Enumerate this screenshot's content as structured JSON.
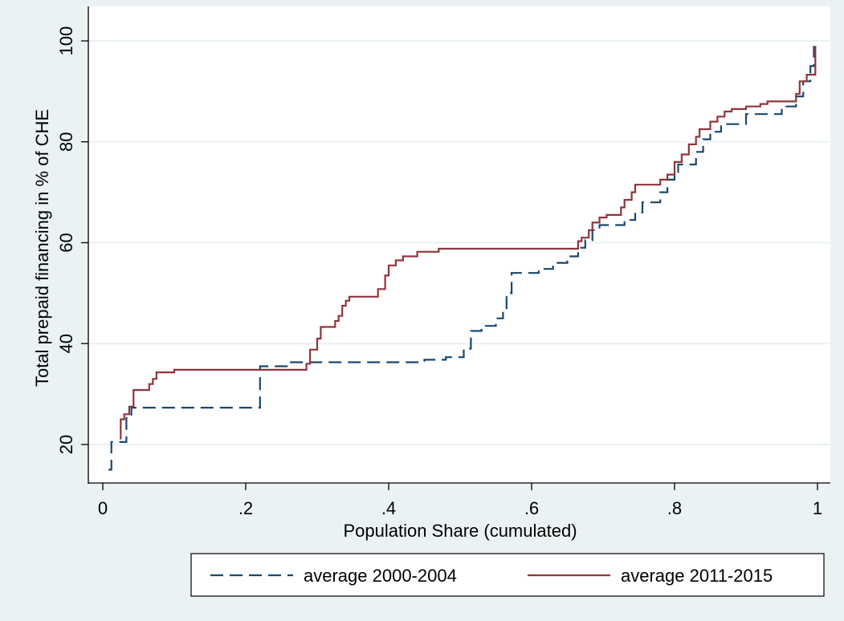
{
  "colors": {
    "background": "#eaf2f3",
    "plot_background": "#ffffff",
    "grid": "#eaf2f3",
    "series_2000_2004": "#1a476f",
    "series_2011_2015": "#90353b"
  },
  "chart_data": {
    "type": "line",
    "title": "",
    "xlabel": "Population Share (cumulated)",
    "ylabel": "Total prepaid financing in % of CHE",
    "xlim": [
      0,
      1
    ],
    "ylim": [
      12,
      101
    ],
    "xticks": [
      0,
      0.2,
      0.4,
      0.6,
      0.8,
      1
    ],
    "xtick_labels": [
      "0",
      ".2",
      ".4",
      ".6",
      ".8",
      "1"
    ],
    "yticks": [
      20,
      40,
      60,
      80,
      100
    ],
    "ytick_labels": [
      "20",
      "40",
      "60",
      "80",
      "100"
    ],
    "grid": true,
    "legend": "bottom",
    "series": [
      {
        "name": "average 2000-2004",
        "style": "dashed",
        "color": "#1a476f",
        "points": [
          [
            0.008,
            15.0
          ],
          [
            0.012,
            15.0
          ],
          [
            0.012,
            20.5
          ],
          [
            0.033,
            20.5
          ],
          [
            0.033,
            25.5
          ],
          [
            0.04,
            25.5
          ],
          [
            0.04,
            27.3
          ],
          [
            0.22,
            27.3
          ],
          [
            0.22,
            35.5
          ],
          [
            0.26,
            35.5
          ],
          [
            0.26,
            36.3
          ],
          [
            0.45,
            36.3
          ],
          [
            0.45,
            36.8
          ],
          [
            0.48,
            36.8
          ],
          [
            0.48,
            37.3
          ],
          [
            0.505,
            37.3
          ],
          [
            0.505,
            39.0
          ],
          [
            0.515,
            39.0
          ],
          [
            0.515,
            42.5
          ],
          [
            0.53,
            42.5
          ],
          [
            0.53,
            43.5
          ],
          [
            0.55,
            43.5
          ],
          [
            0.55,
            45.0
          ],
          [
            0.56,
            45.0
          ],
          [
            0.56,
            47.0
          ],
          [
            0.565,
            47.0
          ],
          [
            0.565,
            50.0
          ],
          [
            0.572,
            50.0
          ],
          [
            0.572,
            54.0
          ],
          [
            0.61,
            54.0
          ],
          [
            0.61,
            54.8
          ],
          [
            0.63,
            54.8
          ],
          [
            0.63,
            56.0
          ],
          [
            0.65,
            56.0
          ],
          [
            0.65,
            57.3
          ],
          [
            0.665,
            57.3
          ],
          [
            0.665,
            59.0
          ],
          [
            0.675,
            59.0
          ],
          [
            0.675,
            60.5
          ],
          [
            0.685,
            60.5
          ],
          [
            0.685,
            62.5
          ],
          [
            0.695,
            62.5
          ],
          [
            0.695,
            63.5
          ],
          [
            0.73,
            63.5
          ],
          [
            0.73,
            64.5
          ],
          [
            0.745,
            64.5
          ],
          [
            0.745,
            66.0
          ],
          [
            0.755,
            66.0
          ],
          [
            0.755,
            68.0
          ],
          [
            0.78,
            68.0
          ],
          [
            0.78,
            70.0
          ],
          [
            0.79,
            70.0
          ],
          [
            0.79,
            72.5
          ],
          [
            0.8,
            72.5
          ],
          [
            0.8,
            74.0
          ],
          [
            0.805,
            74.0
          ],
          [
            0.805,
            75.5
          ],
          [
            0.83,
            75.5
          ],
          [
            0.83,
            78.0
          ],
          [
            0.84,
            78.0
          ],
          [
            0.84,
            80.5
          ],
          [
            0.85,
            80.5
          ],
          [
            0.85,
            82.0
          ],
          [
            0.865,
            82.0
          ],
          [
            0.865,
            83.5
          ],
          [
            0.9,
            83.5
          ],
          [
            0.9,
            85.5
          ],
          [
            0.95,
            85.5
          ],
          [
            0.95,
            87.0
          ],
          [
            0.97,
            87.0
          ],
          [
            0.97,
            89.0
          ],
          [
            0.98,
            89.0
          ],
          [
            0.98,
            92.0
          ],
          [
            0.99,
            92.0
          ],
          [
            0.99,
            95.0
          ],
          [
            0.995,
            95.0
          ],
          [
            0.995,
            99.0
          ]
        ]
      },
      {
        "name": "average 2011-2015",
        "style": "solid",
        "color": "#90353b",
        "points": [
          [
            0.025,
            21.0
          ],
          [
            0.025,
            25.0
          ],
          [
            0.03,
            25.0
          ],
          [
            0.03,
            26.0
          ],
          [
            0.037,
            26.0
          ],
          [
            0.037,
            27.5
          ],
          [
            0.043,
            27.5
          ],
          [
            0.043,
            30.8
          ],
          [
            0.065,
            30.8
          ],
          [
            0.065,
            32.0
          ],
          [
            0.07,
            32.0
          ],
          [
            0.07,
            33.0
          ],
          [
            0.075,
            33.0
          ],
          [
            0.075,
            34.3
          ],
          [
            0.1,
            34.3
          ],
          [
            0.1,
            34.8
          ],
          [
            0.285,
            34.8
          ],
          [
            0.285,
            36.0
          ],
          [
            0.29,
            36.0
          ],
          [
            0.29,
            38.8
          ],
          [
            0.3,
            38.8
          ],
          [
            0.3,
            41.0
          ],
          [
            0.305,
            41.0
          ],
          [
            0.305,
            43.3
          ],
          [
            0.325,
            43.3
          ],
          [
            0.325,
            44.5
          ],
          [
            0.33,
            44.5
          ],
          [
            0.33,
            45.5
          ],
          [
            0.335,
            45.5
          ],
          [
            0.335,
            47.5
          ],
          [
            0.34,
            47.5
          ],
          [
            0.34,
            48.5
          ],
          [
            0.345,
            48.5
          ],
          [
            0.345,
            49.3
          ],
          [
            0.385,
            49.3
          ],
          [
            0.385,
            50.8
          ],
          [
            0.395,
            50.8
          ],
          [
            0.395,
            53.5
          ],
          [
            0.4,
            53.5
          ],
          [
            0.4,
            55.5
          ],
          [
            0.41,
            55.5
          ],
          [
            0.41,
            56.5
          ],
          [
            0.42,
            56.5
          ],
          [
            0.42,
            57.3
          ],
          [
            0.44,
            57.3
          ],
          [
            0.44,
            58.2
          ],
          [
            0.47,
            58.2
          ],
          [
            0.47,
            58.8
          ],
          [
            0.665,
            58.8
          ],
          [
            0.665,
            60.3
          ],
          [
            0.67,
            60.3
          ],
          [
            0.67,
            61.0
          ],
          [
            0.68,
            61.0
          ],
          [
            0.68,
            62.5
          ],
          [
            0.685,
            62.5
          ],
          [
            0.685,
            64.0
          ],
          [
            0.695,
            64.0
          ],
          [
            0.695,
            65.0
          ],
          [
            0.705,
            65.0
          ],
          [
            0.705,
            65.5
          ],
          [
            0.725,
            65.5
          ],
          [
            0.725,
            67.0
          ],
          [
            0.73,
            67.0
          ],
          [
            0.73,
            68.5
          ],
          [
            0.74,
            68.5
          ],
          [
            0.74,
            70.0
          ],
          [
            0.745,
            70.0
          ],
          [
            0.745,
            71.5
          ],
          [
            0.78,
            71.5
          ],
          [
            0.78,
            72.5
          ],
          [
            0.79,
            72.5
          ],
          [
            0.79,
            73.5
          ],
          [
            0.8,
            73.5
          ],
          [
            0.8,
            76.0
          ],
          [
            0.81,
            76.0
          ],
          [
            0.81,
            77.5
          ],
          [
            0.82,
            77.5
          ],
          [
            0.82,
            79.5
          ],
          [
            0.83,
            79.5
          ],
          [
            0.83,
            81.0
          ],
          [
            0.835,
            81.0
          ],
          [
            0.835,
            82.5
          ],
          [
            0.85,
            82.5
          ],
          [
            0.85,
            84.0
          ],
          [
            0.86,
            84.0
          ],
          [
            0.86,
            85.0
          ],
          [
            0.87,
            85.0
          ],
          [
            0.87,
            86.0
          ],
          [
            0.88,
            86.0
          ],
          [
            0.88,
            86.5
          ],
          [
            0.9,
            86.5
          ],
          [
            0.9,
            87.0
          ],
          [
            0.92,
            87.0
          ],
          [
            0.92,
            87.5
          ],
          [
            0.93,
            87.5
          ],
          [
            0.93,
            88.0
          ],
          [
            0.97,
            88.0
          ],
          [
            0.97,
            89.5
          ],
          [
            0.975,
            89.5
          ],
          [
            0.975,
            92.0
          ],
          [
            0.985,
            92.0
          ],
          [
            0.985,
            93.3
          ],
          [
            0.997,
            93.3
          ],
          [
            0.997,
            99.0
          ]
        ]
      }
    ]
  }
}
